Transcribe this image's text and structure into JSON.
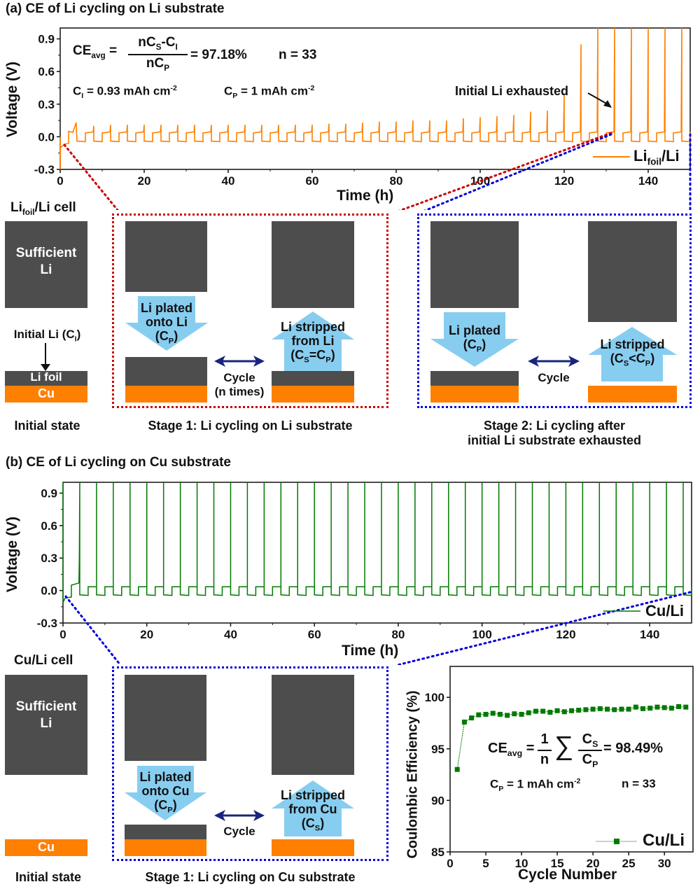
{
  "panel_a": {
    "title": "(a) CE of Li cycling on Li substrate",
    "formula": {
      "lhs": "CE",
      "lhs_sub": "avg",
      "num": "nC",
      "num_sub1": "S",
      "num_mid": "-C",
      "num_sub2": "I",
      "den": "nC",
      "den_sub": "P",
      "result": "= 97.18%",
      "n": "n = 33"
    },
    "ci": {
      "label": "C",
      "sub": "I",
      "value": " = 0.93 mAh cm",
      "sup": "-2"
    },
    "cp": {
      "label": "C",
      "sub": "P",
      "value": " = 1 mAh cm",
      "sup": "-2"
    },
    "annotation": "Initial Li exhausted",
    "cell_label": {
      "main": "Li",
      "sub": "foil",
      "rest": "/Li cell"
    },
    "initial": {
      "sufficient": "Sufficient",
      "sufficient2": "Li",
      "initial_li": "Initial Li (C",
      "initial_li_sub": "I",
      "initial_li_end": ")",
      "li_foil": "Li foil",
      "cu": "Cu",
      "caption": "Initial state"
    },
    "stage1": {
      "plated1": "Li plated",
      "plated2": "onto Li",
      "plated3": "(C",
      "plated3_sub": "P",
      "plated3_end": ")",
      "stripped1": "Li stripped",
      "stripped2": "from Li",
      "stripped3": "(C",
      "stripped3_sub": "S",
      "stripped3_mid": "=C",
      "stripped3_sub2": "P",
      "stripped3_end": ")",
      "cycle1": "Cycle",
      "cycle2": "(n times)",
      "caption": "Stage 1: Li cycling on Li substrate"
    },
    "stage2": {
      "plated1": "Li plated",
      "plated2": "(C",
      "plated2_sub": "P",
      "plated2_end": ")",
      "stripped1": "Li stripped",
      "stripped2": "(C",
      "stripped2_sub": "S",
      "stripped2_mid": "<C",
      "stripped2_sub2": "P",
      "stripped2_end": ")",
      "cycle": "Cycle",
      "caption1": "Stage 2: Li cycling after",
      "caption2": "initial Li substrate exhausted"
    }
  },
  "panel_b": {
    "title": "(b) CE of Li cycling on Cu substrate",
    "cell_label": "Cu/Li cell",
    "initial": {
      "sufficient": "Sufficient",
      "sufficient2": "Li",
      "cu": "Cu",
      "caption": "Initial state"
    },
    "stage1": {
      "plated1": "Li plated",
      "plated2": "onto Cu",
      "plated3": "(C",
      "plated3_sub": "P",
      "plated3_end": ")",
      "stripped1": "Li stripped",
      "stripped2": "from Cu",
      "stripped3": "(C",
      "stripped3_sub": "S",
      "stripped3_end": ")",
      "cycle": "Cycle",
      "caption": "Stage 1: Li cycling on Cu substrate"
    },
    "ce_formula": {
      "lhs": "CE",
      "lhs_sub": "avg",
      "eq": "=",
      "one": "1",
      "n_den": "n",
      "sigma": "∑",
      "num": "C",
      "num_sub": "S",
      "den": "C",
      "den_sub": "P",
      "result": "= 98.49%"
    },
    "cp": {
      "label": "C",
      "sub": "P",
      "value": " = 1 mAh cm",
      "sup": "-2"
    },
    "n": "n = 33"
  },
  "colors": {
    "orange": "#ff7f00",
    "green": "#007a00",
    "li_gray": "#4d4d4d",
    "arrow_blue": "#87cdf0",
    "cycle_arrow": "#1a237e",
    "red_dots": "#cc0000",
    "blue_dots": "#0000dd"
  },
  "chart_data": [
    {
      "type": "line",
      "title": "Li foil/Li voltage profile",
      "xlabel": "Time (h)",
      "ylabel": "Voltage (V)",
      "xlim": [
        0,
        150
      ],
      "ylim": [
        -0.3,
        1.0
      ],
      "xticks": [
        "0",
        "20",
        "40",
        "60",
        "80",
        "100",
        "120",
        "140"
      ],
      "yticks": [
        "-0.3",
        "0.0",
        "0.3",
        "0.6",
        "0.9"
      ],
      "legend": "Li_foil/Li",
      "legend_position": "bottom-right",
      "cycle_period_h": 4,
      "plating_voltage": -0.04,
      "stripping_voltage": 0.035,
      "spike_peaks": [
        0.13,
        0.1,
        0.11,
        0.11,
        0.11,
        0.11,
        0.11,
        0.11,
        0.11,
        0.11,
        0.11,
        0.11,
        0.11,
        0.11,
        0.11,
        0.12,
        0.12,
        0.13,
        0.14,
        0.14,
        0.15,
        0.15,
        0.15,
        0.17,
        0.18,
        0.19,
        0.2,
        0.23,
        0.24,
        0.4,
        0.85,
        1.0,
        1.0,
        1.0,
        1.0,
        1.0,
        1.0
      ]
    },
    {
      "type": "line",
      "title": "Cu/Li voltage profile",
      "xlabel": "Time (h)",
      "ylabel": "Voltage (V)",
      "xlim": [
        0,
        150
      ],
      "ylim": [
        -0.3,
        1.0
      ],
      "xticks": [
        "0",
        "20",
        "40",
        "60",
        "80",
        "100",
        "120",
        "140"
      ],
      "yticks": [
        "-0.3",
        "0.0",
        "0.3",
        "0.6",
        "0.9"
      ],
      "legend": "Cu/Li",
      "legend_position": "bottom-right",
      "cycle_period_h": 4,
      "plating_voltage": -0.04,
      "stripping_voltage": 0.035,
      "cutoff_voltage": 1.0
    },
    {
      "type": "scatter",
      "title": "Coulombic Efficiency",
      "xlabel": "Cycle Number",
      "ylabel": "Coulombic Efficiency (%)",
      "xlim": [
        0,
        34
      ],
      "ylim": [
        85,
        103
      ],
      "xticks": [
        "0",
        "5",
        "10",
        "15",
        "20",
        "25",
        "30"
      ],
      "yticks": [
        "85",
        "90",
        "95",
        "100"
      ],
      "legend": "Cu/Li",
      "legend_position": "bottom-right",
      "x": [
        1,
        2,
        3,
        4,
        5,
        6,
        7,
        8,
        9,
        10,
        11,
        12,
        13,
        14,
        15,
        16,
        17,
        18,
        19,
        20,
        21,
        22,
        23,
        24,
        25,
        26,
        27,
        28,
        29,
        30,
        31,
        32,
        33
      ],
      "y": [
        93.0,
        97.6,
        98.0,
        98.3,
        98.35,
        98.45,
        98.35,
        98.25,
        98.4,
        98.35,
        98.5,
        98.65,
        98.65,
        98.55,
        98.7,
        98.6,
        98.7,
        98.75,
        98.8,
        98.85,
        98.9,
        98.85,
        98.8,
        98.85,
        98.85,
        99.05,
        98.9,
        98.95,
        99.05,
        99.0,
        98.95,
        99.1,
        99.05
      ]
    }
  ],
  "axis_labels": {
    "time": "Time (h)",
    "voltage": "Voltage (V)",
    "cycle_number": "Cycle Number",
    "ce": "Coulombic Efficiency (%)",
    "legend_a_main": "Li",
    "legend_a_sub": "foil",
    "legend_a_rest": "/Li",
    "legend_b": "Cu/Li",
    "legend_ce": "Cu/Li"
  }
}
